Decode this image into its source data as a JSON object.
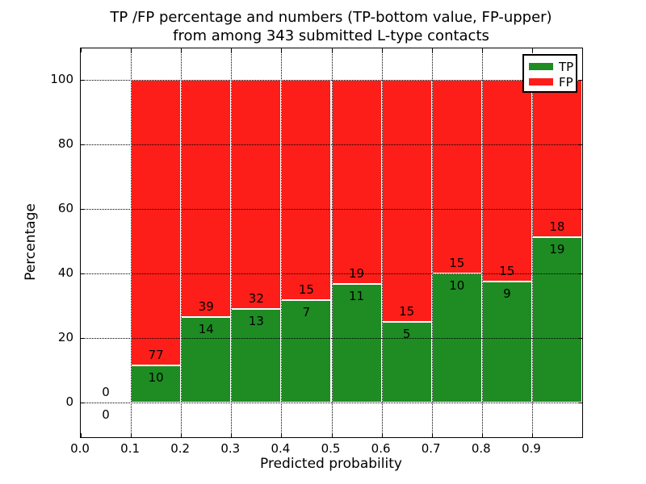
{
  "chart_data": {
    "type": "bar",
    "stacked": true,
    "normalized": "each bin scaled so TP+FP = 100%, labels show raw counts",
    "title_line1": "TP /FP percentage and numbers (TP-bottom value, FP-upper)",
    "title_line2": "from among 343 submitted L-type contacts",
    "xlabel": "Predicted probability",
    "ylabel": "Percentage",
    "total_contacts": 343,
    "bin_edges": [
      0.0,
      0.1,
      0.2,
      0.3,
      0.4,
      0.5,
      0.6,
      0.7,
      0.8,
      0.9,
      1.0
    ],
    "series": [
      {
        "name": "TP",
        "color": "#1e8c23",
        "counts": [
          0,
          10,
          14,
          13,
          7,
          11,
          5,
          10,
          9,
          19
        ]
      },
      {
        "name": "FP",
        "color": "#fd1e19",
        "counts": [
          0,
          77,
          39,
          32,
          15,
          19,
          15,
          15,
          15,
          18
        ]
      }
    ],
    "xticks": [
      0.0,
      0.1,
      0.2,
      0.3,
      0.4,
      0.5,
      0.6,
      0.7,
      0.8,
      0.9
    ],
    "xticklabels": [
      "0.0",
      "0.1",
      "0.2",
      "0.3",
      "0.4",
      "0.5",
      "0.6",
      "0.7",
      "0.8",
      "0.9"
    ],
    "yticks": [
      0,
      20,
      40,
      60,
      80,
      100
    ],
    "yticklabels": [
      "0",
      "20",
      "40",
      "60",
      "80",
      "100"
    ],
    "xlim": [
      0.0,
      1.0
    ],
    "ylim": [
      -10.75,
      109.75
    ],
    "grid": "dotted, drawn above bars",
    "bar_edge_color": "#ffffff",
    "legend": {
      "position": "upper right",
      "entries": [
        "TP",
        "FP"
      ]
    }
  }
}
